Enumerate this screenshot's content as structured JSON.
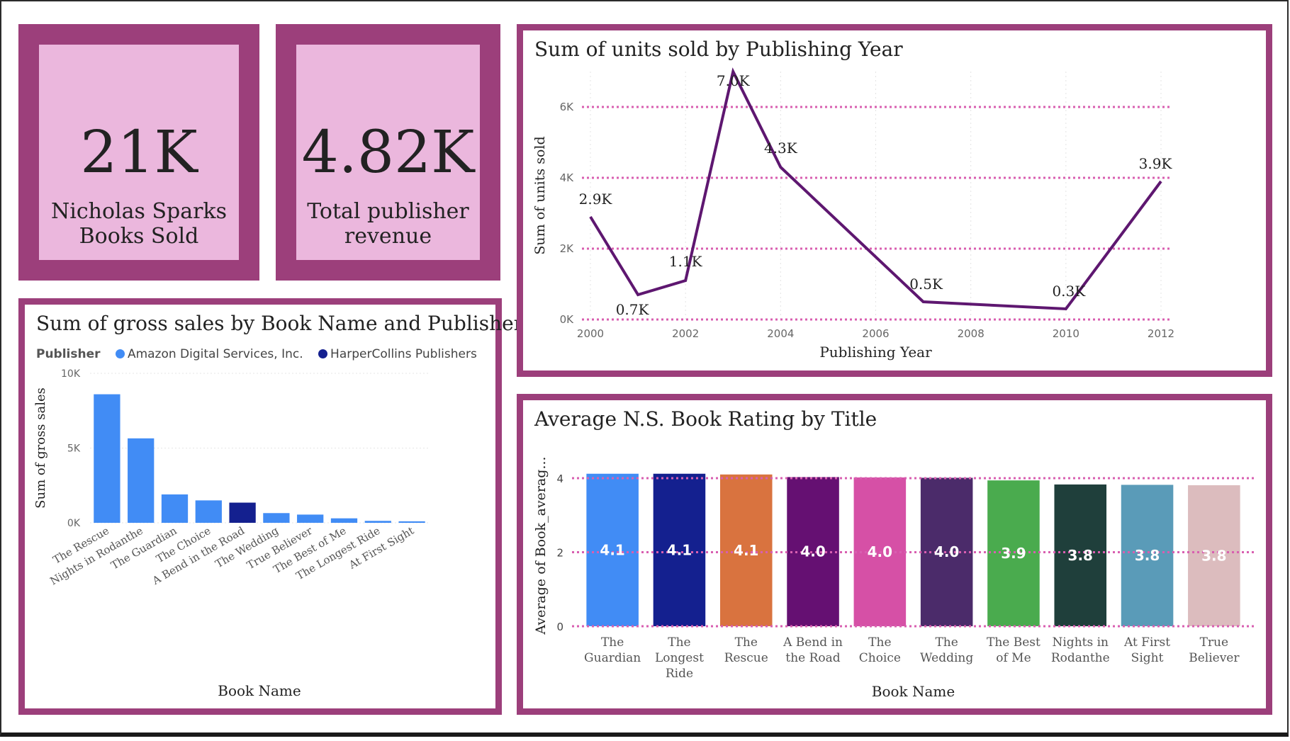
{
  "kpis": [
    {
      "value": "21K",
      "label_line1": "Nicholas Sparks",
      "label_line2": "Books Sold"
    },
    {
      "value": "4.82K",
      "label_line1": "Total publisher",
      "label_line2": "revenue"
    }
  ],
  "colors": {
    "border": "#9c3f7b",
    "kpi_fill": "#ebb7dd",
    "line": "#5e1770",
    "grid": "#d85fb0"
  },
  "gross_sales": {
    "title": "Sum of gross sales by Book Name and Publisher",
    "legend_title": "Publisher",
    "publishers": [
      {
        "name": "Amazon Digital Services,  Inc.",
        "color": "#418cf5"
      },
      {
        "name": "HarperCollins Publishers",
        "color": "#14208f"
      }
    ],
    "ylabel": "Sum of gross sales",
    "xlabel": "Book Name",
    "y_ticks": [
      "10K",
      "5K",
      "0K"
    ]
  },
  "units_sold": {
    "title": "Sum of units sold by Publishing Year",
    "ylabel": "Sum of units sold",
    "xlabel": "Publishing Year",
    "y_ticks": [
      "6K",
      "4K",
      "2K",
      "0K"
    ],
    "x_ticks": [
      "2000",
      "2002",
      "2004",
      "2006",
      "2008",
      "2010",
      "2012"
    ]
  },
  "rating": {
    "title": "Average N.S. Book Rating by Title",
    "ylabel": "Average of Book_averag...",
    "xlabel": "Book Name",
    "y_ticks": [
      "4",
      "2",
      "0"
    ]
  },
  "chart_data": [
    {
      "type": "bar",
      "title": "Sum of gross sales by Book Name and Publisher",
      "xlabel": "Book Name",
      "ylabel": "Sum of gross sales",
      "ylim": [
        0,
        10000
      ],
      "legend": "top-left",
      "grid": true,
      "categories": [
        "The Rescue",
        "Nights in Rodanthe",
        "The Guardian",
        "The Choice",
        "A Bend in the Road",
        "The Wedding",
        "True Believer",
        "The Best of Me",
        "The Longest Ride",
        "At First Sight"
      ],
      "values": [
        8600,
        5650,
        1900,
        1500,
        1350,
        650,
        550,
        300,
        130,
        100
      ],
      "publisher": [
        "Amazon Digital Services,  Inc.",
        "Amazon Digital Services,  Inc.",
        "Amazon Digital Services,  Inc.",
        "Amazon Digital Services,  Inc.",
        "HarperCollins Publishers",
        "Amazon Digital Services,  Inc.",
        "Amazon Digital Services,  Inc.",
        "Amazon Digital Services,  Inc.",
        "Amazon Digital Services,  Inc.",
        "Amazon Digital Services,  Inc."
      ]
    },
    {
      "type": "line",
      "title": "Sum of units sold by Publishing Year",
      "xlabel": "Publishing Year",
      "ylabel": "Sum of units sold",
      "xlim": [
        2000,
        2012
      ],
      "ylim": [
        0,
        7000
      ],
      "grid": true,
      "x": [
        2000,
        2001,
        2002,
        2003,
        2004,
        2007,
        2010,
        2012
      ],
      "y": [
        2900,
        700,
        1100,
        7000,
        4300,
        500,
        300,
        3900
      ],
      "point_labels": [
        "2.9K",
        "0.7K",
        "1.1K",
        "7.0K",
        "4.3K",
        "0.5K",
        "0.3K",
        "3.9K"
      ]
    },
    {
      "type": "bar",
      "title": "Average N.S. Book Rating by Title",
      "xlabel": "Book Name",
      "ylabel": "Average of Book_averag...",
      "ylim": [
        0,
        4.5
      ],
      "grid": true,
      "categories": [
        "The Guardian",
        "The Longest Ride",
        "The Rescue",
        "A Bend in the Road",
        "The Choice",
        "The Wedding",
        "The Best of Me",
        "Nights in Rodanthe",
        "At First Sight",
        "True Believer"
      ],
      "category_lines": [
        [
          "The",
          "Guardian"
        ],
        [
          "The",
          "Longest",
          "Ride"
        ],
        [
          "The",
          "Rescue"
        ],
        [
          "A Bend in",
          "the Road"
        ],
        [
          "The",
          "Choice"
        ],
        [
          "The",
          "Wedding"
        ],
        [
          "The Best",
          "of Me"
        ],
        [
          "Nights in",
          "Rodanthe"
        ],
        [
          "At First",
          "Sight"
        ],
        [
          "True",
          "Believer"
        ]
      ],
      "values": [
        4.12,
        4.12,
        4.1,
        4.03,
        4.02,
        4.01,
        3.94,
        3.83,
        3.82,
        3.81
      ],
      "labels": [
        "4.1",
        "4.1",
        "4.1",
        "4.0",
        "4.0",
        "4.0",
        "3.9",
        "3.8",
        "3.8",
        "3.8"
      ],
      "colors": [
        "#418cf5",
        "#14208f",
        "#d9733f",
        "#651072",
        "#d650a6",
        "#4b2b6a",
        "#4aab4e",
        "#1f3f3b",
        "#5a9bb8",
        "#dcbcbe"
      ]
    }
  ]
}
